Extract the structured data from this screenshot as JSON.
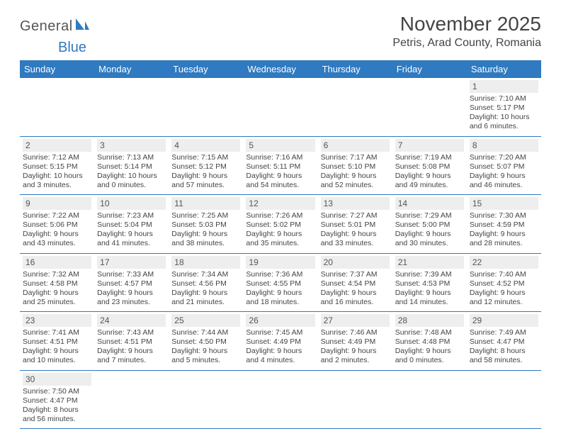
{
  "brand": {
    "general": "General",
    "blue": "Blue"
  },
  "title": "November 2025",
  "location": "Petris, Arad County, Romania",
  "headers": [
    "Sunday",
    "Monday",
    "Tuesday",
    "Wednesday",
    "Thursday",
    "Friday",
    "Saturday"
  ],
  "colors": {
    "accent": "#2f7ac0",
    "header_text": "#ffffff",
    "daynum_bg": "#eeeeee",
    "text": "#444444",
    "background": "#ffffff"
  },
  "typography": {
    "title_fontsize_pt": 21,
    "location_fontsize_pt": 12,
    "header_fontsize_pt": 10,
    "body_fontsize_pt": 8
  },
  "labels": {
    "sunrise_prefix": "Sunrise: ",
    "sunset_prefix": "Sunset: ",
    "daylight_prefix": "Daylight: "
  },
  "weeks": [
    [
      null,
      null,
      null,
      null,
      null,
      null,
      {
        "n": "1",
        "sunrise": "7:10 AM",
        "sunset": "5:17 PM",
        "daylight": "10 hours and 6 minutes."
      }
    ],
    [
      {
        "n": "2",
        "sunrise": "7:12 AM",
        "sunset": "5:15 PM",
        "daylight": "10 hours and 3 minutes."
      },
      {
        "n": "3",
        "sunrise": "7:13 AM",
        "sunset": "5:14 PM",
        "daylight": "10 hours and 0 minutes."
      },
      {
        "n": "4",
        "sunrise": "7:15 AM",
        "sunset": "5:12 PM",
        "daylight": "9 hours and 57 minutes."
      },
      {
        "n": "5",
        "sunrise": "7:16 AM",
        "sunset": "5:11 PM",
        "daylight": "9 hours and 54 minutes."
      },
      {
        "n": "6",
        "sunrise": "7:17 AM",
        "sunset": "5:10 PM",
        "daylight": "9 hours and 52 minutes."
      },
      {
        "n": "7",
        "sunrise": "7:19 AM",
        "sunset": "5:08 PM",
        "daylight": "9 hours and 49 minutes."
      },
      {
        "n": "8",
        "sunrise": "7:20 AM",
        "sunset": "5:07 PM",
        "daylight": "9 hours and 46 minutes."
      }
    ],
    [
      {
        "n": "9",
        "sunrise": "7:22 AM",
        "sunset": "5:06 PM",
        "daylight": "9 hours and 43 minutes."
      },
      {
        "n": "10",
        "sunrise": "7:23 AM",
        "sunset": "5:04 PM",
        "daylight": "9 hours and 41 minutes."
      },
      {
        "n": "11",
        "sunrise": "7:25 AM",
        "sunset": "5:03 PM",
        "daylight": "9 hours and 38 minutes."
      },
      {
        "n": "12",
        "sunrise": "7:26 AM",
        "sunset": "5:02 PM",
        "daylight": "9 hours and 35 minutes."
      },
      {
        "n": "13",
        "sunrise": "7:27 AM",
        "sunset": "5:01 PM",
        "daylight": "9 hours and 33 minutes."
      },
      {
        "n": "14",
        "sunrise": "7:29 AM",
        "sunset": "5:00 PM",
        "daylight": "9 hours and 30 minutes."
      },
      {
        "n": "15",
        "sunrise": "7:30 AM",
        "sunset": "4:59 PM",
        "daylight": "9 hours and 28 minutes."
      }
    ],
    [
      {
        "n": "16",
        "sunrise": "7:32 AM",
        "sunset": "4:58 PM",
        "daylight": "9 hours and 25 minutes."
      },
      {
        "n": "17",
        "sunrise": "7:33 AM",
        "sunset": "4:57 PM",
        "daylight": "9 hours and 23 minutes."
      },
      {
        "n": "18",
        "sunrise": "7:34 AM",
        "sunset": "4:56 PM",
        "daylight": "9 hours and 21 minutes."
      },
      {
        "n": "19",
        "sunrise": "7:36 AM",
        "sunset": "4:55 PM",
        "daylight": "9 hours and 18 minutes."
      },
      {
        "n": "20",
        "sunrise": "7:37 AM",
        "sunset": "4:54 PM",
        "daylight": "9 hours and 16 minutes."
      },
      {
        "n": "21",
        "sunrise": "7:39 AM",
        "sunset": "4:53 PM",
        "daylight": "9 hours and 14 minutes."
      },
      {
        "n": "22",
        "sunrise": "7:40 AM",
        "sunset": "4:52 PM",
        "daylight": "9 hours and 12 minutes."
      }
    ],
    [
      {
        "n": "23",
        "sunrise": "7:41 AM",
        "sunset": "4:51 PM",
        "daylight": "9 hours and 10 minutes."
      },
      {
        "n": "24",
        "sunrise": "7:43 AM",
        "sunset": "4:51 PM",
        "daylight": "9 hours and 7 minutes."
      },
      {
        "n": "25",
        "sunrise": "7:44 AM",
        "sunset": "4:50 PM",
        "daylight": "9 hours and 5 minutes."
      },
      {
        "n": "26",
        "sunrise": "7:45 AM",
        "sunset": "4:49 PM",
        "daylight": "9 hours and 4 minutes."
      },
      {
        "n": "27",
        "sunrise": "7:46 AM",
        "sunset": "4:49 PM",
        "daylight": "9 hours and 2 minutes."
      },
      {
        "n": "28",
        "sunrise": "7:48 AM",
        "sunset": "4:48 PM",
        "daylight": "9 hours and 0 minutes."
      },
      {
        "n": "29",
        "sunrise": "7:49 AM",
        "sunset": "4:47 PM",
        "daylight": "8 hours and 58 minutes."
      }
    ],
    [
      {
        "n": "30",
        "sunrise": "7:50 AM",
        "sunset": "4:47 PM",
        "daylight": "8 hours and 56 minutes."
      },
      null,
      null,
      null,
      null,
      null,
      null
    ]
  ]
}
